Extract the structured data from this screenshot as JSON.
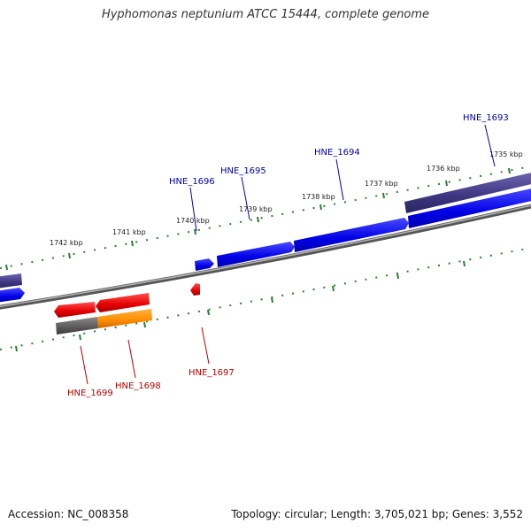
{
  "title": "Hyphomonas neptunium ATCC 15444, complete genome",
  "footer": {
    "accession": "Accession: NC_008358",
    "summary": "Topology: circular; Length: 3,705,021 bp; Genes: 3,552"
  },
  "colors": {
    "forward_gene": "#0000e6",
    "reverse_gene": "#e60000",
    "rna_or_cds_orange": "#ff8c00",
    "slate_feature": "#3d3580",
    "gray_feature": "#555555",
    "backbone": "#777777",
    "tick": "#2e7d32",
    "forward_label": "#0000aa",
    "reverse_label": "#bb0000"
  },
  "scale_ticks": [
    {
      "label": "1735 kbp"
    },
    {
      "label": "1736 kbp"
    },
    {
      "label": "1737 kbp"
    },
    {
      "label": "1738 kbp"
    },
    {
      "label": "1739 kbp"
    },
    {
      "label": "1740 kbp"
    },
    {
      "label": "1741 kbp"
    },
    {
      "label": "1742 kbp"
    }
  ],
  "forward_genes": [
    {
      "label": "HNE_1693"
    },
    {
      "label": "HNE_1694"
    },
    {
      "label": "HNE_1695"
    },
    {
      "label": "HNE_1696"
    }
  ],
  "reverse_genes": [
    {
      "label": "HNE_1697"
    },
    {
      "label": "HNE_1698"
    },
    {
      "label": "HNE_1699"
    }
  ]
}
